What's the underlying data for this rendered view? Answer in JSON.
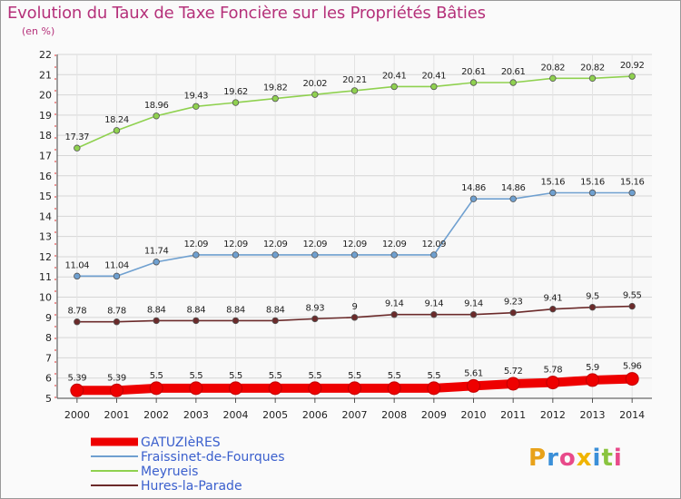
{
  "chart_data": {
    "type": "line",
    "title": "Evolution du Taux de Taxe Foncière sur les Propriétés Bâties",
    "subtitle": "(en %)",
    "xlabel": "",
    "ylabel": "",
    "x": [
      "2000",
      "2001",
      "2002",
      "2003",
      "2004",
      "2005",
      "2006",
      "2007",
      "2008",
      "2009",
      "2010",
      "2011",
      "2012",
      "2013",
      "2014"
    ],
    "ylim": [
      5,
      22
    ],
    "yticks": [
      "5",
      "6",
      "7",
      "8",
      "9",
      "10",
      "11",
      "12",
      "13",
      "14",
      "15",
      "16",
      "17",
      "18",
      "19",
      "20",
      "21",
      "22"
    ],
    "series": [
      {
        "name": "Meyrueis",
        "color": "#8fd14f",
        "values": [
          17.37,
          18.24,
          18.96,
          19.43,
          19.62,
          19.82,
          20.02,
          20.21,
          20.41,
          20.41,
          20.61,
          20.61,
          20.82,
          20.82,
          20.92
        ],
        "labels": [
          "17.37",
          "18.24",
          "18.96",
          "19.43",
          "19.62",
          "19.82",
          "20.02",
          "20.21",
          "20.41",
          "20.41",
          "20.61",
          "20.61",
          "20.82",
          "20.82",
          "20.92"
        ]
      },
      {
        "name": "Fraissinet-de-Fourques",
        "color": "#6fa0d0",
        "values": [
          11.04,
          11.04,
          11.74,
          12.09,
          12.09,
          12.09,
          12.09,
          12.09,
          12.09,
          12.09,
          14.86,
          14.86,
          15.16,
          15.16,
          15.16
        ],
        "labels": [
          "11.04",
          "11.04",
          "11.74",
          "12.09",
          "12.09",
          "12.09",
          "12.09",
          "12.09",
          "12.09",
          "12.09",
          "14.86",
          "14.86",
          "15.16",
          "15.16",
          "15.16"
        ]
      },
      {
        "name": "Hures-la-Parade",
        "color": "#6b2a2a",
        "values": [
          8.78,
          8.78,
          8.84,
          8.84,
          8.84,
          8.84,
          8.93,
          9,
          9.14,
          9.14,
          9.14,
          9.23,
          9.41,
          9.5,
          9.55
        ],
        "labels": [
          "8.78",
          "8.78",
          "8.84",
          "8.84",
          "8.84",
          "8.84",
          "8.93",
          "9",
          "9.14",
          "9.14",
          "9.14",
          "9.23",
          "9.41",
          "9.5",
          "9.55"
        ]
      },
      {
        "name": "GATUZIèRES",
        "color": "#ee0000",
        "values": [
          5.39,
          5.39,
          5.5,
          5.5,
          5.5,
          5.5,
          5.5,
          5.5,
          5.5,
          5.5,
          5.61,
          5.72,
          5.78,
          5.9,
          5.96
        ],
        "labels": [
          "5.39",
          "5.39",
          "5.5",
          "5.5",
          "5.5",
          "5.5",
          "5.5",
          "5.5",
          "5.5",
          "5.5",
          "5.61",
          "5.72",
          "5.78",
          "5.9",
          "5.96"
        ]
      }
    ],
    "legend": [
      "GATUZIèRES",
      "Fraissinet-de-Fourques",
      "Meyrueis",
      "Hures-la-Parade"
    ],
    "legend_position": "bottom-left"
  },
  "brand": [
    "P",
    "r",
    "o",
    "x",
    "i",
    "t",
    "i"
  ]
}
